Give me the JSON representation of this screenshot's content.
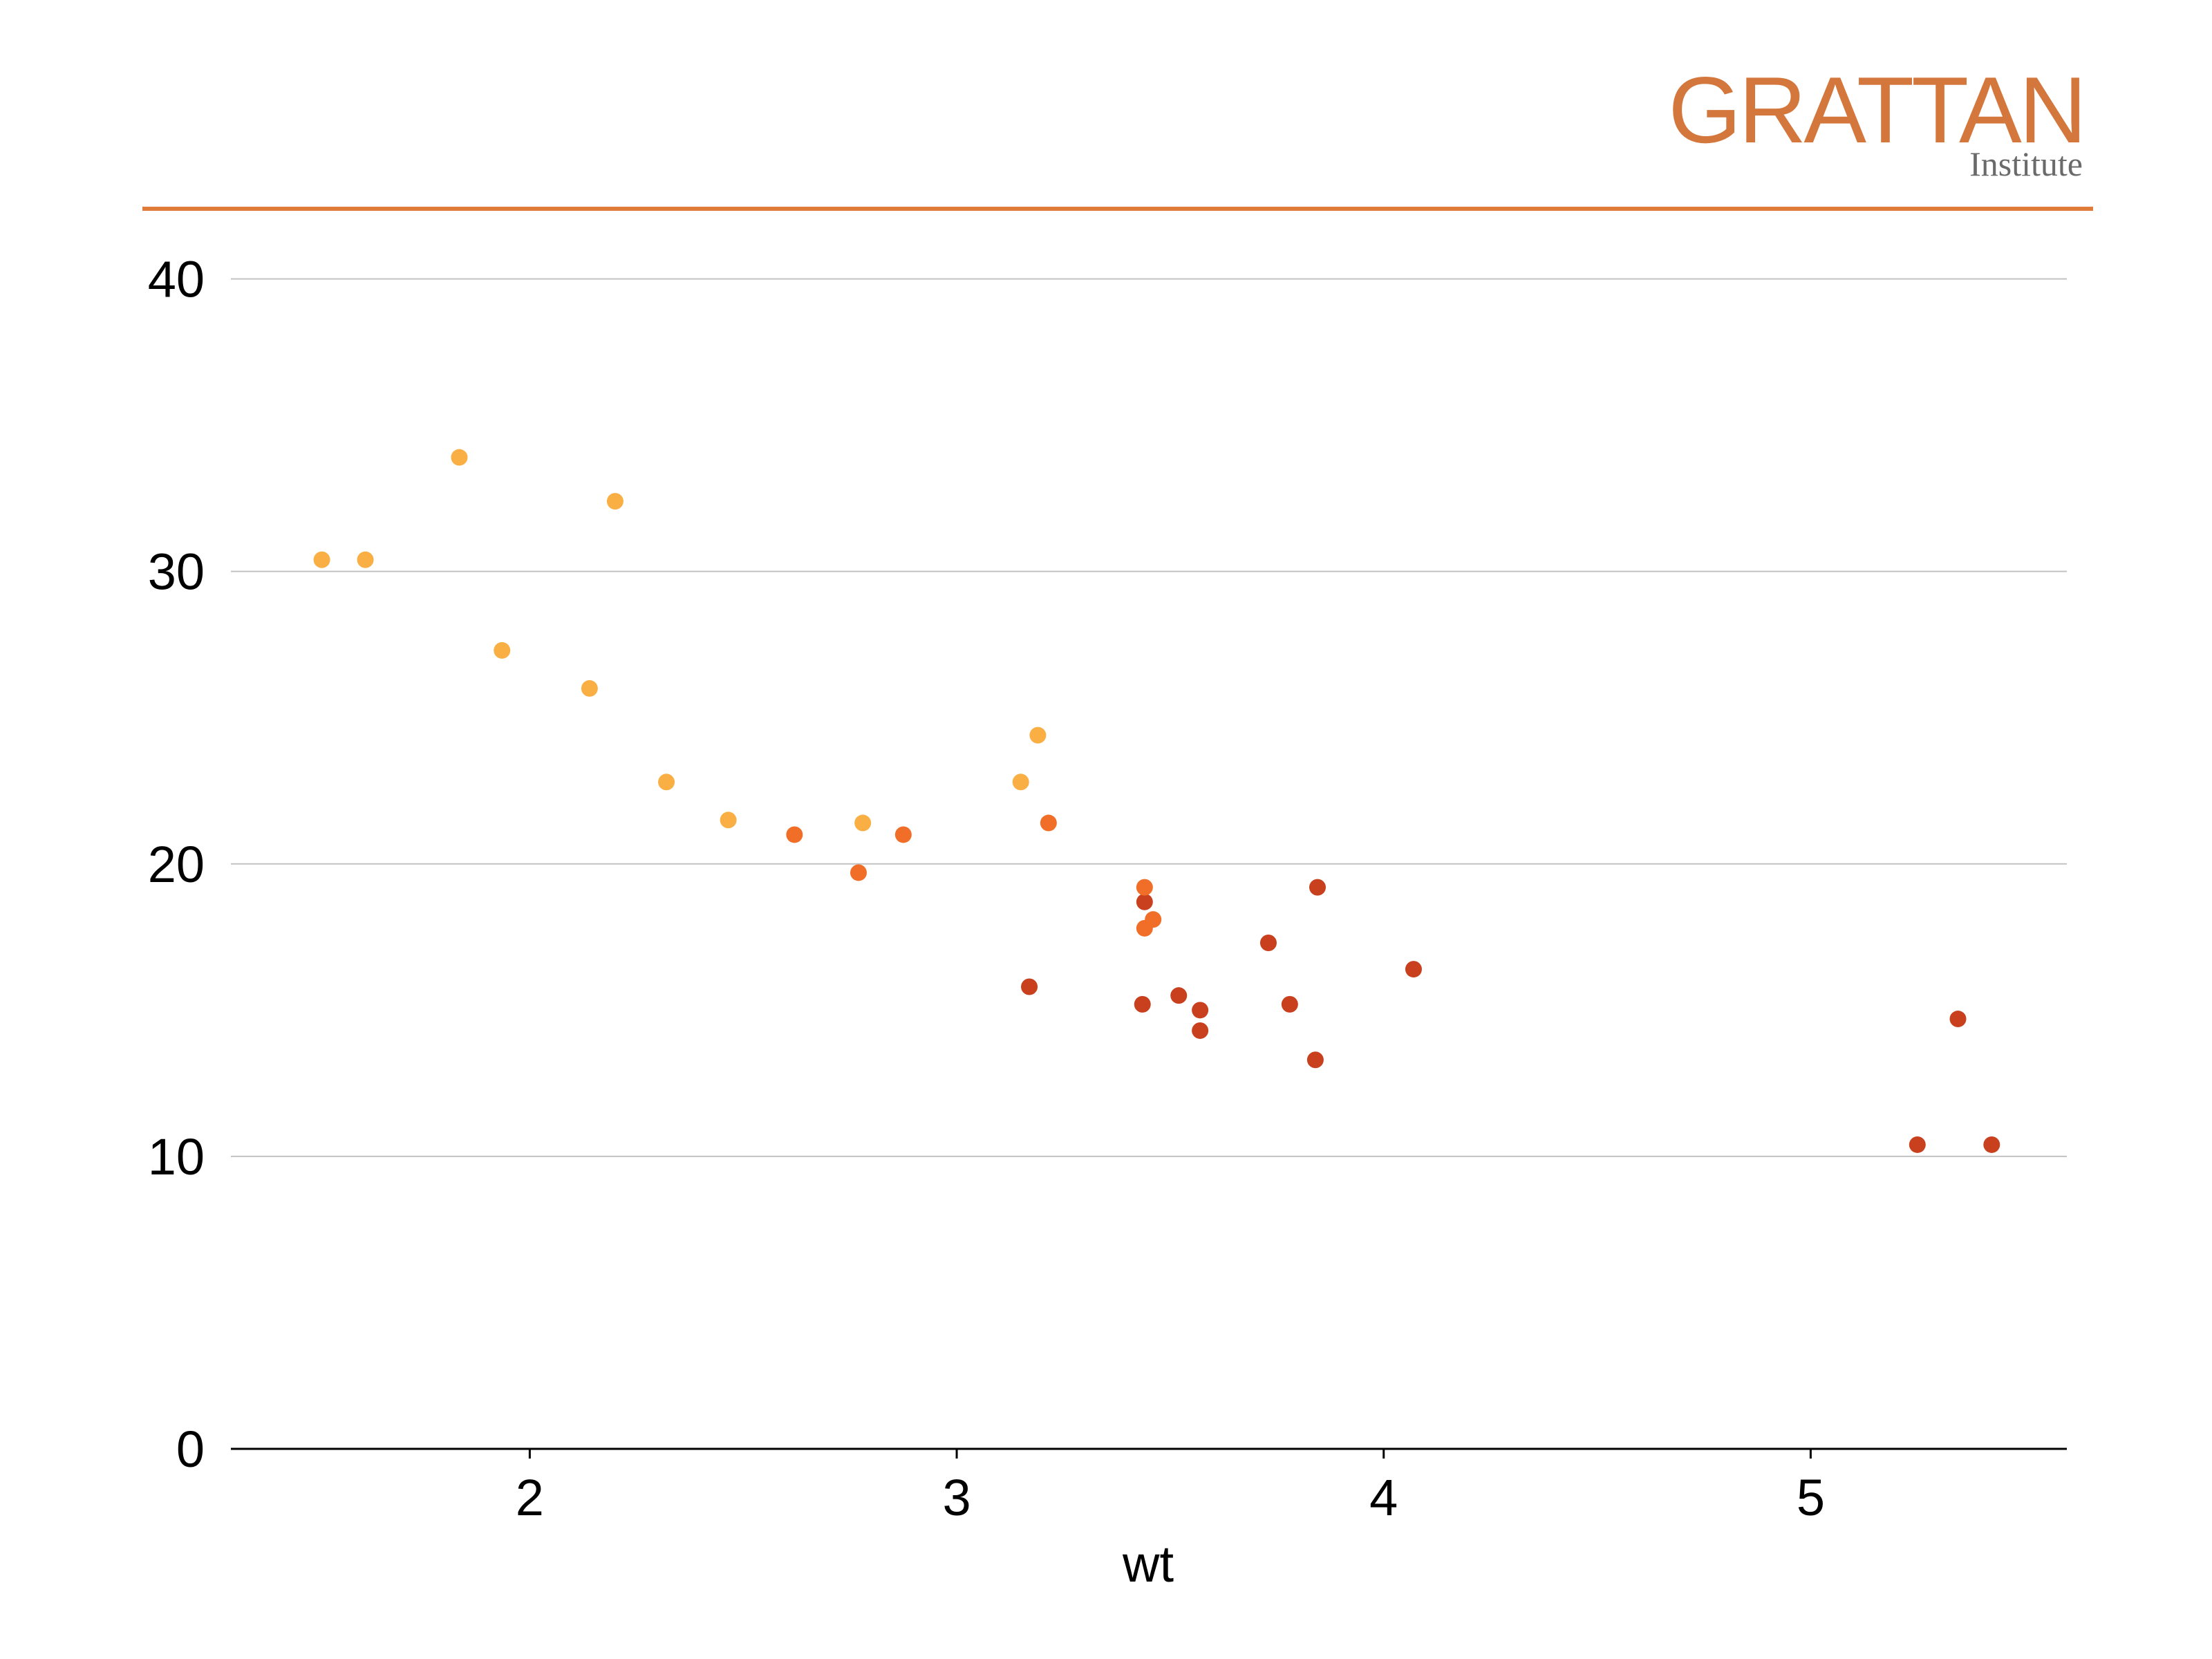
{
  "brand": {
    "name": "GRATTAN",
    "subtitle": "Institute",
    "color": "#d4773c",
    "rule_color": "#e07c3a"
  },
  "chart_data": {
    "type": "scatter",
    "title": "",
    "xlabel": "wt",
    "ylabel": "",
    "xlim": [
      1.3,
      5.6
    ],
    "ylim": [
      0,
      45
    ],
    "xticks": [
      2,
      3,
      4,
      5
    ],
    "yticks": [
      0,
      10,
      20,
      30,
      40
    ],
    "grid": "horizontal",
    "legend": "none",
    "gridline_color": "#c2c2c2",
    "colors": {
      "light": "#f9af44",
      "mid": "#f06e27",
      "dark": "#c8401d"
    },
    "points": [
      {
        "x": 1.513,
        "y": 30.4,
        "group": "light"
      },
      {
        "x": 1.615,
        "y": 30.4,
        "group": "light"
      },
      {
        "x": 1.835,
        "y": 33.9,
        "group": "light"
      },
      {
        "x": 1.935,
        "y": 27.3,
        "group": "light"
      },
      {
        "x": 2.14,
        "y": 26.0,
        "group": "light"
      },
      {
        "x": 2.2,
        "y": 32.4,
        "group": "light"
      },
      {
        "x": 2.32,
        "y": 22.8,
        "group": "light"
      },
      {
        "x": 2.465,
        "y": 21.5,
        "group": "light"
      },
      {
        "x": 2.62,
        "y": 21.0,
        "group": "mid"
      },
      {
        "x": 2.77,
        "y": 19.7,
        "group": "mid"
      },
      {
        "x": 2.78,
        "y": 21.4,
        "group": "light"
      },
      {
        "x": 2.875,
        "y": 21.0,
        "group": "mid"
      },
      {
        "x": 3.15,
        "y": 22.8,
        "group": "light"
      },
      {
        "x": 3.17,
        "y": 15.8,
        "group": "dark"
      },
      {
        "x": 3.19,
        "y": 24.4,
        "group": "light"
      },
      {
        "x": 3.215,
        "y": 21.4,
        "group": "mid"
      },
      {
        "x": 3.435,
        "y": 15.2,
        "group": "dark"
      },
      {
        "x": 3.44,
        "y": 18.7,
        "group": "dark"
      },
      {
        "x": 3.44,
        "y": 19.2,
        "group": "mid"
      },
      {
        "x": 3.44,
        "y": 17.8,
        "group": "mid"
      },
      {
        "x": 3.46,
        "y": 18.1,
        "group": "mid"
      },
      {
        "x": 3.52,
        "y": 15.5,
        "group": "dark"
      },
      {
        "x": 3.57,
        "y": 15.0,
        "group": "dark"
      },
      {
        "x": 3.57,
        "y": 14.3,
        "group": "dark"
      },
      {
        "x": 3.73,
        "y": 17.3,
        "group": "dark"
      },
      {
        "x": 3.78,
        "y": 15.2,
        "group": "dark"
      },
      {
        "x": 3.84,
        "y": 13.3,
        "group": "dark"
      },
      {
        "x": 3.845,
        "y": 19.2,
        "group": "dark"
      },
      {
        "x": 4.07,
        "y": 16.4,
        "group": "dark"
      },
      {
        "x": 5.25,
        "y": 10.4,
        "group": "dark"
      },
      {
        "x": 5.345,
        "y": 14.7,
        "group": "dark"
      },
      {
        "x": 5.424,
        "y": 10.4,
        "group": "dark"
      }
    ]
  }
}
